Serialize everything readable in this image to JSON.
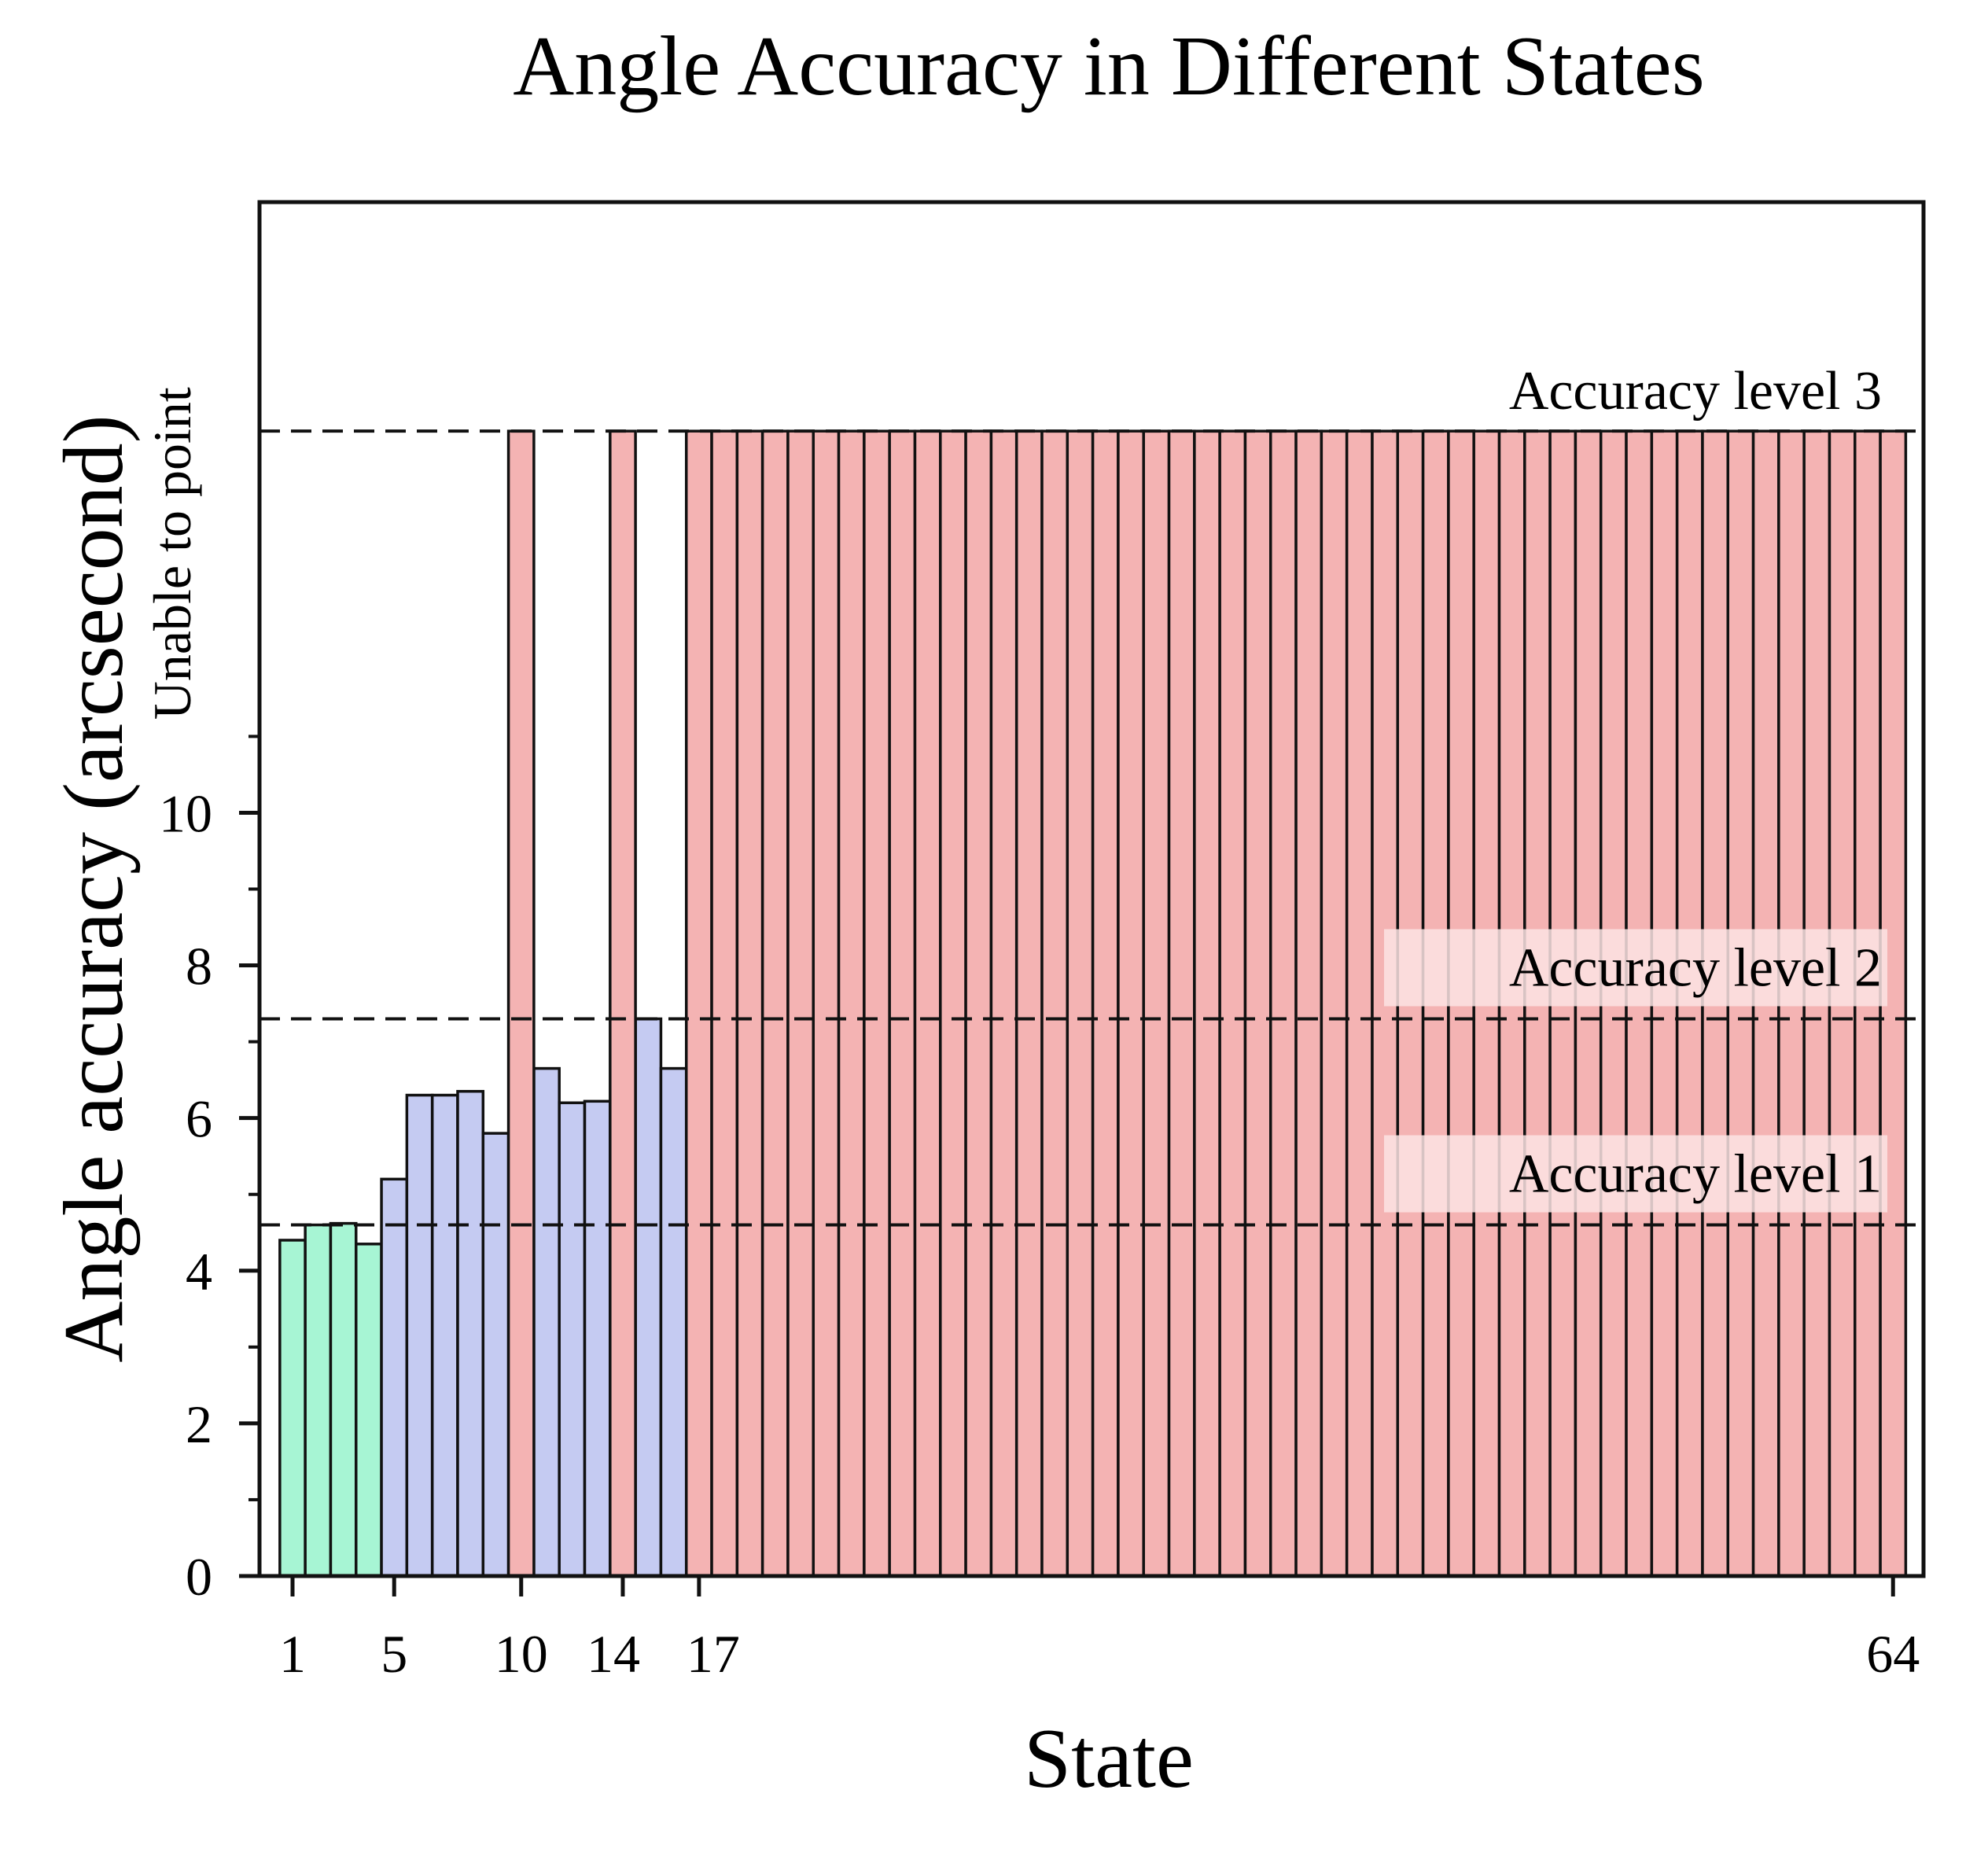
{
  "chart_data": {
    "type": "bar",
    "title": "Angle Accuracy in Different States",
    "xlabel": "State",
    "ylabel": "Angle accuracy (arcsecond)",
    "xlim": [
      -0.3,
      65.2
    ],
    "ylim": [
      0,
      18
    ],
    "y_ticks": [
      0,
      2,
      4,
      6,
      8,
      10
    ],
    "y_ticks_minor": [
      1,
      3,
      5,
      7,
      9,
      11
    ],
    "x_ticks": [
      1,
      5,
      10,
      14,
      17,
      64
    ],
    "x_tick_labels": [
      "1",
      "5",
      "10",
      "14",
      "17",
      "64"
    ],
    "unable_label": "Unable to point",
    "unable_value": 15,
    "grid": false,
    "colors": {
      "level1": "#a7f5d4",
      "level2": "#c5cbf2",
      "unable": "#f4b3b3",
      "line": "#111111"
    },
    "reference_lines": [
      {
        "label": "Accuracy level 1",
        "value": 4.6
      },
      {
        "label": "Accuracy level 2",
        "value": 7.3
      },
      {
        "label": "Accuracy level 3",
        "value": 15
      }
    ],
    "series": [
      {
        "name": "Accuracy level 1",
        "color_key": "level1",
        "states": [
          1,
          2,
          3,
          4
        ],
        "values": [
          4.4,
          4.6,
          4.62,
          4.35
        ]
      },
      {
        "name": "Accuracy level 2",
        "color_key": "level2",
        "states": [
          5,
          6,
          7,
          8,
          9,
          11,
          12,
          13,
          15,
          16
        ],
        "values": [
          5.2,
          6.3,
          6.3,
          6.35,
          5.8,
          6.65,
          6.2,
          6.22,
          7.3,
          6.65
        ]
      },
      {
        "name": "Unable to point",
        "color_key": "unable",
        "states": [
          10,
          14,
          17,
          18,
          19,
          20,
          21,
          22,
          23,
          24,
          25,
          26,
          27,
          28,
          29,
          30,
          31,
          32,
          33,
          34,
          35,
          36,
          37,
          38,
          39,
          40,
          41,
          42,
          43,
          44,
          45,
          46,
          47,
          48,
          49,
          50,
          51,
          52,
          53,
          54,
          55,
          56,
          57,
          58,
          59,
          60,
          61,
          62,
          63,
          64
        ],
        "values": [
          15,
          15,
          15,
          15,
          15,
          15,
          15,
          15,
          15,
          15,
          15,
          15,
          15,
          15,
          15,
          15,
          15,
          15,
          15,
          15,
          15,
          15,
          15,
          15,
          15,
          15,
          15,
          15,
          15,
          15,
          15,
          15,
          15,
          15,
          15,
          15,
          15,
          15,
          15,
          15,
          15,
          15,
          15,
          15,
          15,
          15,
          15,
          15,
          15,
          15
        ]
      }
    ]
  }
}
